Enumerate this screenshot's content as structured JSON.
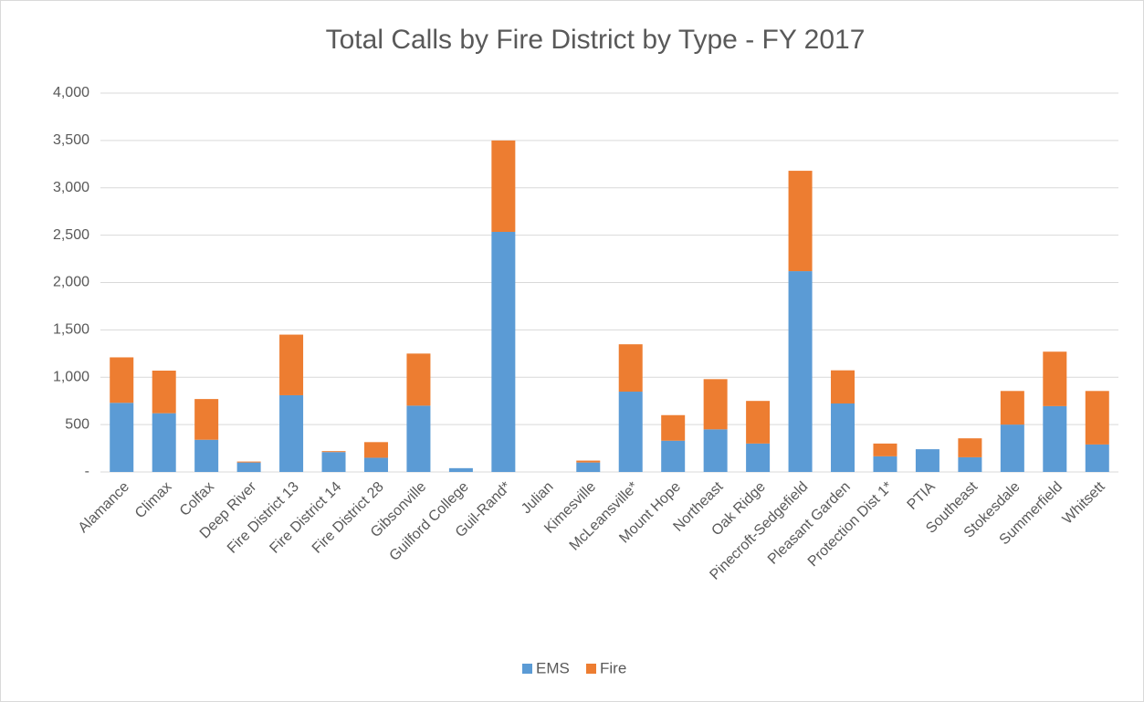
{
  "chart_data": {
    "type": "stacked_bar",
    "title": "Total Calls by Fire District by Type - FY 2017",
    "categories": [
      "Alamance",
      "Climax",
      "Colfax",
      "Deep River",
      "Fire District 13",
      "Fire District 14",
      "Fire District 28",
      "Gibsonville",
      "Guilford College",
      "Guil-Rand*",
      "Julian",
      "Kimesville",
      "McLeansville*",
      "Mount Hope",
      "Northeast",
      "Oak Ridge",
      "Pinecroft-Sedgefield",
      "Pleasant Garden",
      "Protection Dist 1*",
      "PTIA",
      "Southeast",
      "Stokesdale",
      "Summerfield",
      "Whitsett"
    ],
    "series": [
      {
        "name": "EMS",
        "color": "#5b9bd5",
        "values": [
          730,
          620,
          340,
          100,
          810,
          210,
          150,
          700,
          40,
          2535,
          0,
          100,
          848,
          330,
          450,
          300,
          2120,
          723,
          165,
          240,
          155,
          500,
          695,
          290
        ]
      },
      {
        "name": "Fire",
        "color": "#ed7d31",
        "values": [
          480,
          450,
          430,
          10,
          640,
          10,
          165,
          550,
          0,
          965,
          0,
          20,
          500,
          270,
          530,
          450,
          1060,
          350,
          135,
          0,
          200,
          355,
          575,
          565
        ]
      }
    ],
    "ylim": [
      0,
      4000
    ],
    "yticks": [
      {
        "value": 0,
        "label": "-"
      },
      500,
      {
        "value": 1000,
        "label": "1,000"
      },
      {
        "value": 1500,
        "label": "1,500"
      },
      {
        "value": 2000,
        "label": "2,000"
      },
      {
        "value": 2500,
        "label": "2,500"
      },
      {
        "value": 3000,
        "label": "3,000"
      },
      {
        "value": 3500,
        "label": "3,500"
      },
      {
        "value": 4000,
        "label": "4,000"
      }
    ],
    "grid": true,
    "legend": "bottom"
  }
}
